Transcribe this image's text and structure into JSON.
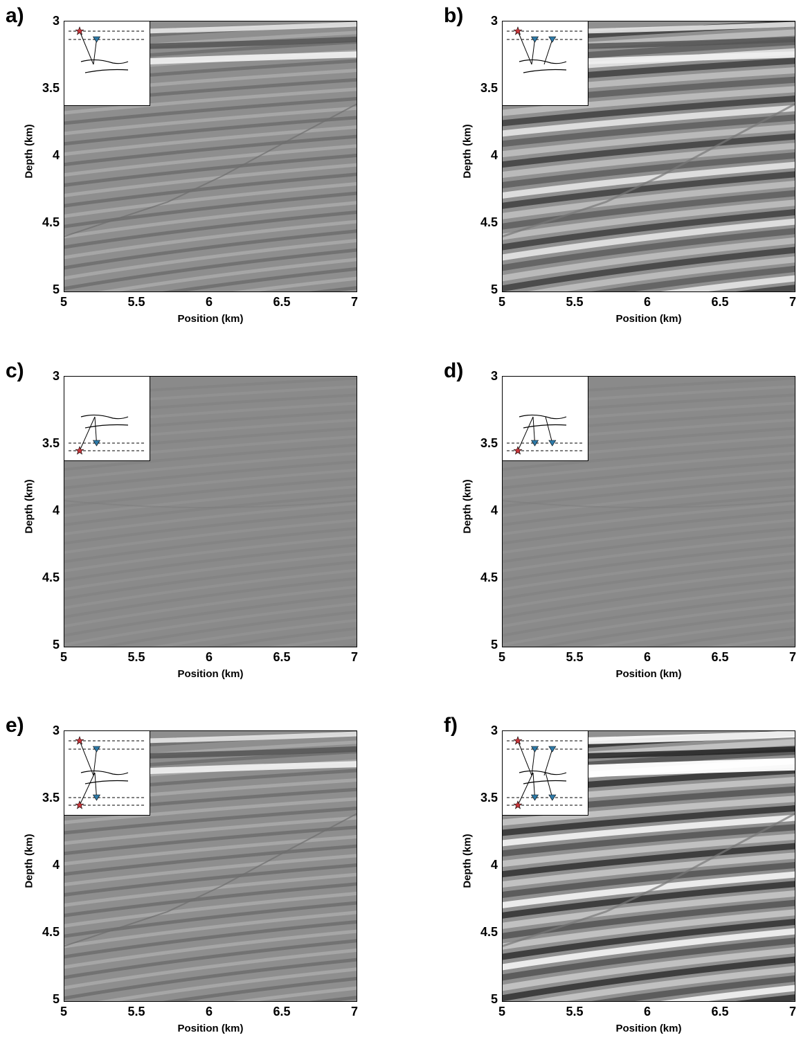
{
  "panels": [
    {
      "letter": "a)",
      "style": "a",
      "inset": {
        "sources": [
          0.08
        ],
        "receivers": [
          0.35
        ],
        "levels": "top",
        "bounces": 1
      }
    },
    {
      "letter": "b)",
      "style": "b",
      "inset": {
        "sources": [
          0.08
        ],
        "receivers": [
          0.35,
          0.58
        ],
        "levels": "top",
        "bounces": 2
      }
    },
    {
      "letter": "c)",
      "style": "c",
      "inset": {
        "sources": [
          0.08
        ],
        "receivers": [
          0.35
        ],
        "levels": "bottom",
        "bounces": 1
      }
    },
    {
      "letter": "d)",
      "style": "d",
      "inset": {
        "sources": [
          0.08
        ],
        "receivers": [
          0.35,
          0.58
        ],
        "levels": "bottom",
        "bounces": 2
      }
    },
    {
      "letter": "e)",
      "style": "e",
      "inset": {
        "sources": [
          0.08
        ],
        "receivers": [
          0.35
        ],
        "levels": "both",
        "bounces": 1
      }
    },
    {
      "letter": "f)",
      "style": "f",
      "inset": {
        "sources": [
          0.08
        ],
        "receivers": [
          0.35,
          0.58
        ],
        "levels": "both",
        "bounces": 2
      }
    }
  ],
  "axes": {
    "xlabel": "Position (km)",
    "ylabel": "Depth (km)",
    "xticks": [
      "5",
      "5.5",
      "6",
      "6.5",
      "7"
    ],
    "yticks": [
      "3",
      "3.5",
      "4",
      "4.5",
      "5"
    ]
  },
  "chart_data": {
    "type": "heatmap",
    "xlim": [
      5,
      7
    ],
    "ylim": [
      3,
      5
    ],
    "xlabel": "Position (km)",
    "ylabel": "Depth (km)"
  }
}
